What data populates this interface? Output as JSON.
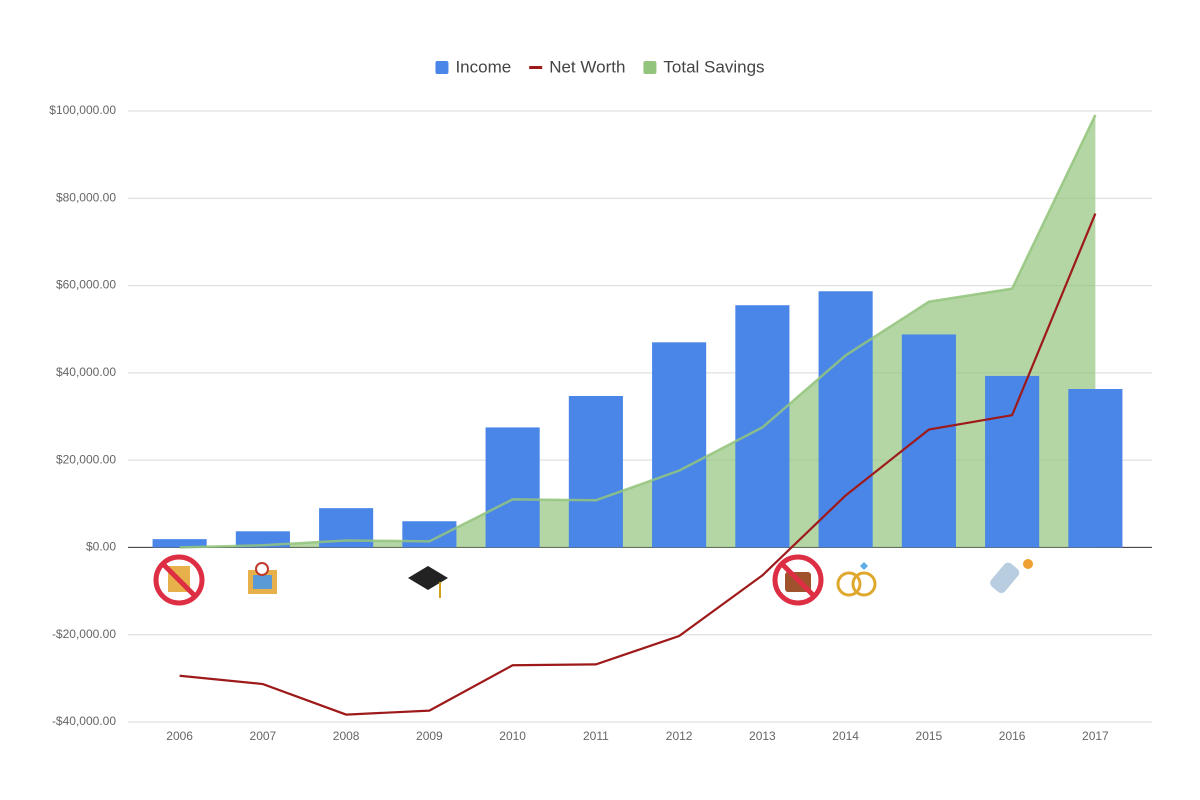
{
  "chart_data": {
    "type": "combo",
    "categories": [
      "2006",
      "2007",
      "2008",
      "2009",
      "2010",
      "2011",
      "2012",
      "2013",
      "2014",
      "2015",
      "2016",
      "2017"
    ],
    "series": [
      {
        "name": "Income",
        "type": "bar",
        "color": "#4a86e8",
        "values": [
          1900,
          3700,
          9000,
          6000,
          27500,
          34700,
          47000,
          55500,
          58700,
          48800,
          39300,
          36300
        ]
      },
      {
        "name": "Net Worth",
        "type": "line",
        "color": "#9e1a1a",
        "values": [
          -29400,
          -31300,
          -38300,
          -37400,
          -27000,
          -26800,
          -20300,
          -6400,
          11900,
          27000,
          30300,
          76500
        ]
      },
      {
        "name": "Total Savings",
        "type": "area",
        "color": "#93c47d",
        "values": [
          0,
          500,
          1600,
          1400,
          11000,
          10800,
          17600,
          27500,
          44000,
          56300,
          59300,
          99100
        ]
      }
    ],
    "ylim": [
      -40000,
      100000
    ],
    "yticks": [
      {
        "value": -40000,
        "label": "-$40,000.00"
      },
      {
        "value": -20000,
        "label": "-$20,000.00"
      },
      {
        "value": 0,
        "label": "$0.00"
      },
      {
        "value": 20000,
        "label": "$20,000.00"
      },
      {
        "value": 40000,
        "label": "$40,000.00"
      },
      {
        "value": 60000,
        "label": "$60,000.00"
      },
      {
        "value": 80000,
        "label": "$80,000.00"
      },
      {
        "value": 100000,
        "label": "$100,000.00"
      }
    ],
    "grid": true,
    "legend": "top"
  }
}
